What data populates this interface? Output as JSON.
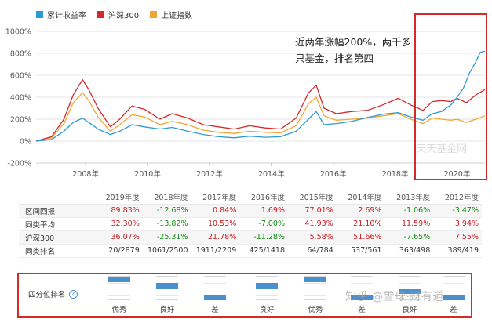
{
  "legend": [
    {
      "name": "累计收益率",
      "color": "#2c9bd4"
    },
    {
      "name": "沪深300",
      "color": "#d42a2a"
    },
    {
      "name": "上证指数",
      "color": "#f3a531"
    }
  ],
  "annotation": "近两年涨幅200%，两千多只基金，排名第四",
  "watermark": "天天基金网",
  "chart_data": {
    "type": "line",
    "title": "",
    "x_ticks": [
      "2008年",
      "2010年",
      "2012年",
      "2014年",
      "2016年",
      "2018年",
      "2020年"
    ],
    "y_ticks": [
      "1000%",
      "800%",
      "600%",
      "400%",
      "200%",
      "0%",
      "-200%"
    ],
    "ylim": [
      -200,
      1000
    ],
    "xlim": [
      2006.4,
      2020.9
    ],
    "grid": true,
    "series": [
      {
        "name": "累计收益率",
        "color": "#2c9bd4",
        "points": [
          [
            2006.4,
            0
          ],
          [
            2006.9,
            15
          ],
          [
            2007.3,
            90
          ],
          [
            2007.6,
            170
          ],
          [
            2007.9,
            210
          ],
          [
            2008.1,
            170
          ],
          [
            2008.4,
            110
          ],
          [
            2008.8,
            60
          ],
          [
            2009.1,
            90
          ],
          [
            2009.5,
            150
          ],
          [
            2009.9,
            130
          ],
          [
            2010.4,
            110
          ],
          [
            2010.8,
            125
          ],
          [
            2011.3,
            90
          ],
          [
            2011.8,
            60
          ],
          [
            2012.3,
            40
          ],
          [
            2012.8,
            30
          ],
          [
            2013.3,
            45
          ],
          [
            2013.8,
            35
          ],
          [
            2014.3,
            40
          ],
          [
            2014.8,
            90
          ],
          [
            2015.2,
            200
          ],
          [
            2015.45,
            270
          ],
          [
            2015.7,
            150
          ],
          [
            2016.1,
            160
          ],
          [
            2016.6,
            180
          ],
          [
            2017.1,
            215
          ],
          [
            2017.6,
            245
          ],
          [
            2018.1,
            260
          ],
          [
            2018.5,
            220
          ],
          [
            2018.9,
            190
          ],
          [
            2019.2,
            250
          ],
          [
            2019.5,
            270
          ],
          [
            2019.8,
            330
          ],
          [
            2020.0,
            400
          ],
          [
            2020.2,
            480
          ],
          [
            2020.4,
            620
          ],
          [
            2020.6,
            720
          ],
          [
            2020.75,
            810
          ],
          [
            2020.9,
            820
          ]
        ]
      },
      {
        "name": "沪深300",
        "color": "#d42a2a",
        "points": [
          [
            2006.4,
            0
          ],
          [
            2006.9,
            40
          ],
          [
            2007.3,
            200
          ],
          [
            2007.6,
            420
          ],
          [
            2007.9,
            560
          ],
          [
            2008.1,
            470
          ],
          [
            2008.4,
            300
          ],
          [
            2008.8,
            130
          ],
          [
            2009.1,
            200
          ],
          [
            2009.5,
            320
          ],
          [
            2009.9,
            290
          ],
          [
            2010.4,
            200
          ],
          [
            2010.8,
            250
          ],
          [
            2011.3,
            210
          ],
          [
            2011.8,
            150
          ],
          [
            2012.3,
            130
          ],
          [
            2012.8,
            110
          ],
          [
            2013.3,
            140
          ],
          [
            2013.8,
            120
          ],
          [
            2014.3,
            110
          ],
          [
            2014.8,
            210
          ],
          [
            2015.2,
            440
          ],
          [
            2015.45,
            510
          ],
          [
            2015.7,
            300
          ],
          [
            2016.1,
            250
          ],
          [
            2016.6,
            270
          ],
          [
            2017.1,
            280
          ],
          [
            2017.6,
            330
          ],
          [
            2018.1,
            390
          ],
          [
            2018.5,
            330
          ],
          [
            2018.9,
            280
          ],
          [
            2019.2,
            360
          ],
          [
            2019.5,
            370
          ],
          [
            2019.8,
            360
          ],
          [
            2020.0,
            390
          ],
          [
            2020.3,
            350
          ],
          [
            2020.6,
            420
          ],
          [
            2020.9,
            470
          ]
        ]
      },
      {
        "name": "上证指数",
        "color": "#f3a531",
        "points": [
          [
            2006.4,
            0
          ],
          [
            2006.9,
            30
          ],
          [
            2007.3,
            160
          ],
          [
            2007.6,
            350
          ],
          [
            2007.9,
            440
          ],
          [
            2008.1,
            370
          ],
          [
            2008.4,
            220
          ],
          [
            2008.8,
            90
          ],
          [
            2009.1,
            150
          ],
          [
            2009.5,
            240
          ],
          [
            2009.9,
            220
          ],
          [
            2010.4,
            150
          ],
          [
            2010.8,
            180
          ],
          [
            2011.3,
            150
          ],
          [
            2011.8,
            100
          ],
          [
            2012.3,
            80
          ],
          [
            2012.8,
            70
          ],
          [
            2013.3,
            90
          ],
          [
            2013.8,
            80
          ],
          [
            2014.3,
            75
          ],
          [
            2014.8,
            140
          ],
          [
            2015.2,
            340
          ],
          [
            2015.45,
            400
          ],
          [
            2015.7,
            230
          ],
          [
            2016.1,
            190
          ],
          [
            2016.6,
            200
          ],
          [
            2017.1,
            210
          ],
          [
            2017.6,
            230
          ],
          [
            2018.1,
            250
          ],
          [
            2018.5,
            200
          ],
          [
            2018.9,
            160
          ],
          [
            2019.2,
            210
          ],
          [
            2019.5,
            200
          ],
          [
            2019.8,
            190
          ],
          [
            2020.0,
            200
          ],
          [
            2020.3,
            170
          ],
          [
            2020.6,
            200
          ],
          [
            2020.9,
            230
          ]
        ]
      }
    ]
  },
  "table": {
    "headers": [
      "",
      "2019年度",
      "2018年度",
      "2017年度",
      "2016年度",
      "2015年度",
      "2014年度",
      "2013年度",
      "2012年度"
    ],
    "rows": [
      {
        "label": "区间回报",
        "cells": [
          "89.83%",
          "-12.68%",
          "0.84%",
          "1.69%",
          "77.01%",
          "2.69%",
          "-1.06%",
          "-3.47%"
        ],
        "style": "sign",
        "shade": true
      },
      {
        "label": "同类平均",
        "cells": [
          "32.30%",
          "-13.82%",
          "10.53%",
          "-7.00%",
          "41.93%",
          "21.10%",
          "11.59%",
          "3.94%"
        ],
        "style": "sign",
        "shade": false
      },
      {
        "label": "沪深300",
        "cells": [
          "36.07%",
          "-25.31%",
          "21.78%",
          "-11.28%",
          "5.58%",
          "51.66%",
          "-7.65%",
          "7.55%"
        ],
        "style": "sign",
        "shade": true
      },
      {
        "label": "同类排名",
        "cells": [
          "20/2879",
          "1061/2500",
          "1911/2209",
          "425/1418",
          "64/784",
          "537/561",
          "363/498",
          "389/419"
        ],
        "style": "plain",
        "shade": false
      }
    ]
  },
  "quartile": {
    "label": "四分位排名",
    "items": [
      {
        "text": "优秀",
        "quartile": 1
      },
      {
        "text": "良好",
        "quartile": 2
      },
      {
        "text": "差",
        "quartile": 4
      },
      {
        "text": "良好",
        "quartile": 2
      },
      {
        "text": "优秀",
        "quartile": 1
      },
      {
        "text": "差",
        "quartile": 4
      },
      {
        "text": "良好",
        "quartile": 3
      },
      {
        "text": "差",
        "quartile": 4
      }
    ]
  },
  "watermark2": "知乎 @雪球·财有道"
}
